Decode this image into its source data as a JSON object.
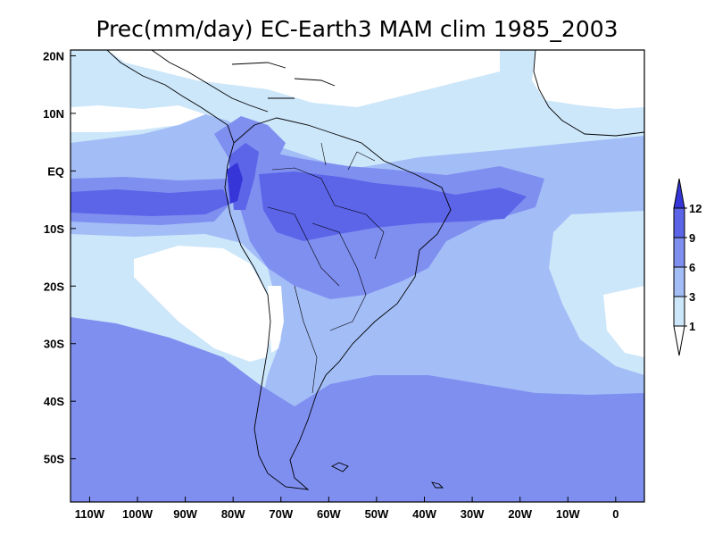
{
  "title": "Prec(mm/day) EC-Earth3 MAM clim 1985_2003",
  "x_axis": {
    "labels": [
      "110W",
      "100W",
      "90W",
      "80W",
      "70W",
      "60W",
      "50W",
      "40W",
      "30W",
      "20W",
      "10W",
      "0"
    ],
    "lons": [
      -110,
      -100,
      -90,
      -80,
      -70,
      -60,
      -50,
      -40,
      -30,
      -20,
      -10,
      0
    ]
  },
  "y_axis": {
    "labels": [
      "20N",
      "10N",
      "EQ",
      "10S",
      "20S",
      "30S",
      "40S",
      "50S"
    ],
    "lats": [
      20,
      10,
      0,
      -10,
      -20,
      -30,
      -40,
      -50
    ]
  },
  "map_extent": {
    "lon_min": -114,
    "lon_max": 6,
    "lat_max": 21,
    "lat_min": -57.5
  },
  "colorbar": {
    "labels": [
      "1",
      "3",
      "6",
      "9",
      "12"
    ],
    "levels": [
      1,
      3,
      6,
      9,
      12
    ],
    "colors": {
      "below": "#ffffff",
      "c1_3": "#cce6fa",
      "c3_6": "#a3bdf7",
      "c6_9": "#7f8ff0",
      "c9_12": "#5c64e8",
      "above": "#3535d8"
    }
  }
}
